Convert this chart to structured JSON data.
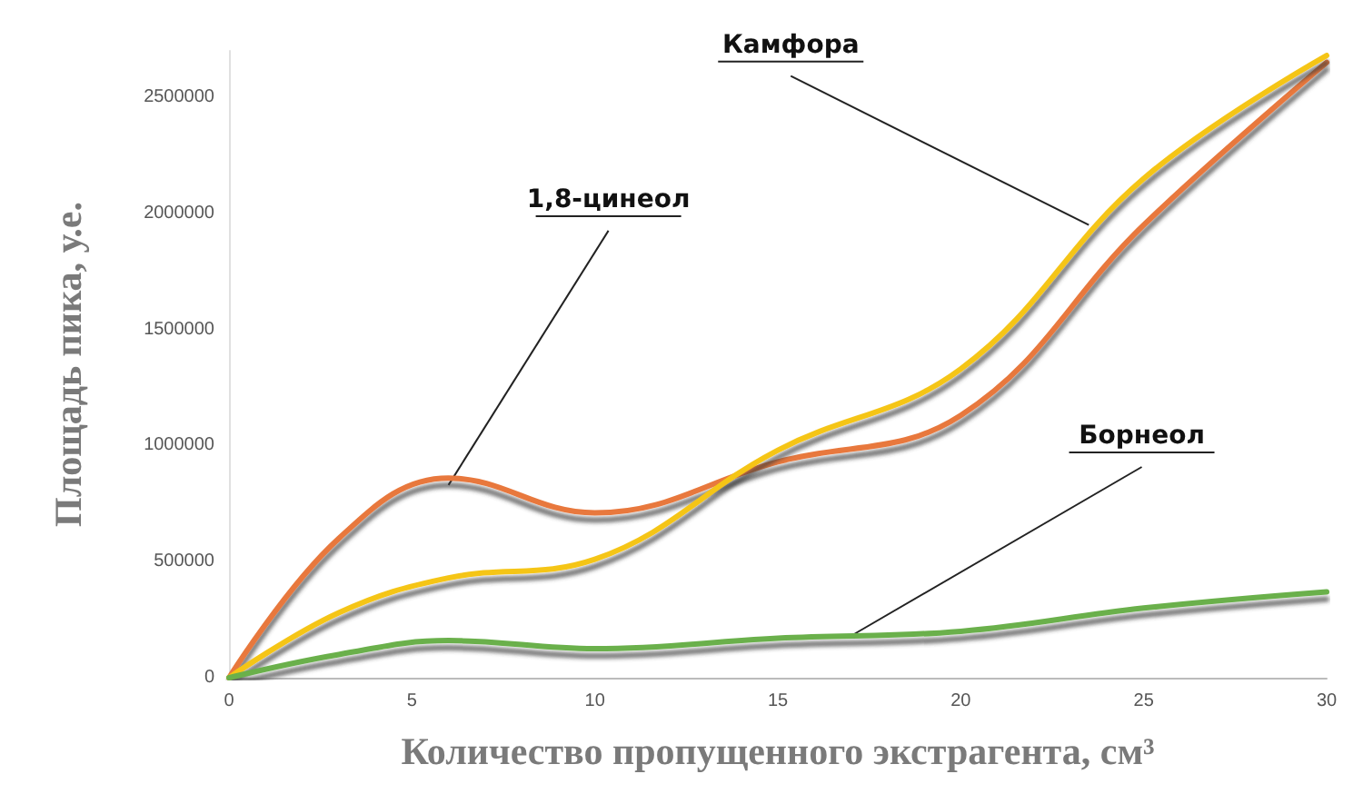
{
  "chart_data": {
    "type": "line",
    "xlabel": "Количество пропущенного экстрагента, см³",
    "ylabel": "Площадь пика, у.е.",
    "xlim": [
      0,
      30
    ],
    "xticks": [
      0,
      5,
      10,
      15,
      20,
      25,
      30
    ],
    "ylim": [
      0,
      2700000
    ],
    "yticks": [
      0,
      500000,
      1000000,
      1500000,
      2000000,
      2500000
    ],
    "grid": false,
    "marker": "none",
    "line_style": "solid",
    "series": [
      {
        "color": "#e8783c",
        "x": [
          0,
          3,
          6,
          10,
          15,
          20,
          25,
          30
        ],
        "values": [
          0,
          600000,
          860000,
          710000,
          930000,
          1130000,
          1950000,
          2650000
        ]
      },
      {
        "color": "#f5c518",
        "x": [
          0,
          3,
          6,
          10,
          15,
          20,
          25,
          30
        ],
        "values": [
          0,
          280000,
          430000,
          510000,
          980000,
          1330000,
          2150000,
          2680000
        ]
      },
      {
        "color": "#6ab04c",
        "x": [
          0,
          3,
          6,
          10,
          15,
          20,
          25,
          30
        ],
        "values": [
          0,
          100000,
          160000,
          125000,
          170000,
          200000,
          300000,
          370000
        ]
      }
    ],
    "annotations": [
      {
        "text": "Камфора",
        "x": 23.5,
        "y": 1950000
      },
      {
        "text": "1,8-цинеол",
        "x": 6,
        "y": 830000
      },
      {
        "text": "Борнеол",
        "x": 17,
        "y": 180000
      }
    ]
  }
}
